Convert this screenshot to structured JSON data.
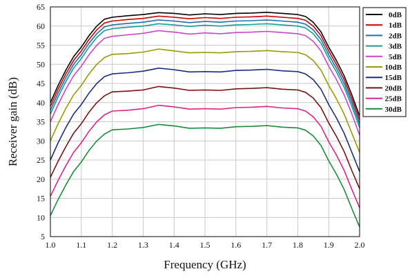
{
  "chart_data": {
    "type": "line",
    "xlabel": "Frequency (GHz)",
    "ylabel": "Receiver gain (dB)",
    "xlim": [
      1.0,
      2.0
    ],
    "ylim": [
      5,
      65
    ],
    "xticks": [
      "1.0",
      "1.1",
      "1.2",
      "1.3",
      "1.4",
      "1.5",
      "1.6",
      "1.7",
      "1.8",
      "1.9",
      "2.0"
    ],
    "yticks": [
      "5",
      "10",
      "15",
      "20",
      "25",
      "30",
      "35",
      "40",
      "45",
      "50",
      "55",
      "60",
      "65"
    ],
    "grid": true,
    "legend_position": "right",
    "x": [
      1.0,
      1.025,
      1.05,
      1.075,
      1.1,
      1.125,
      1.15,
      1.175,
      1.2,
      1.25,
      1.3,
      1.35,
      1.4,
      1.45,
      1.5,
      1.55,
      1.6,
      1.65,
      1.7,
      1.75,
      1.8,
      1.825,
      1.85,
      1.875,
      1.9,
      1.925,
      1.95,
      1.975,
      2.0
    ],
    "series": [
      {
        "name": "0dB",
        "color": "#000000",
        "values": [
          40.0,
          44.5,
          48.5,
          52.0,
          54.5,
          57.5,
          60.0,
          61.8,
          62.3,
          62.7,
          63.0,
          63.5,
          63.3,
          62.9,
          63.2,
          63.0,
          63.3,
          63.4,
          63.6,
          63.3,
          63.0,
          62.5,
          61.0,
          58.5,
          54.5,
          51.0,
          47.0,
          42.0,
          36.5
        ]
      },
      {
        "name": "1dB",
        "color": "#cc0000",
        "values": [
          39.0,
          43.5,
          47.5,
          51.0,
          53.5,
          56.5,
          59.0,
          60.8,
          61.3,
          61.7,
          62.0,
          62.6,
          62.3,
          61.9,
          62.2,
          62.0,
          62.3,
          62.4,
          62.6,
          62.3,
          62.0,
          61.5,
          60.0,
          57.5,
          53.5,
          50.0,
          46.0,
          41.0,
          35.5
        ]
      },
      {
        "name": "2dB",
        "color": "#1f6fae",
        "values": [
          38.0,
          42.5,
          46.5,
          50.0,
          52.5,
          55.5,
          58.0,
          59.8,
          60.3,
          60.7,
          61.0,
          61.6,
          61.3,
          60.9,
          61.2,
          61.0,
          61.3,
          61.4,
          61.6,
          61.3,
          61.0,
          60.5,
          59.0,
          56.5,
          52.5,
          49.0,
          45.0,
          40.0,
          34.5
        ]
      },
      {
        "name": "3dB",
        "color": "#1a9a9a",
        "values": [
          37.0,
          41.5,
          45.5,
          49.0,
          51.5,
          54.5,
          57.0,
          58.8,
          59.3,
          59.7,
          60.0,
          60.6,
          60.3,
          59.9,
          60.2,
          60.0,
          60.3,
          60.4,
          60.6,
          60.3,
          60.0,
          59.5,
          58.0,
          55.5,
          51.5,
          48.0,
          44.0,
          39.0,
          33.5
        ]
      },
      {
        "name": "5dB",
        "color": "#cc44cc",
        "values": [
          35.0,
          39.5,
          43.5,
          47.0,
          49.5,
          52.5,
          55.0,
          56.8,
          57.3,
          57.7,
          58.1,
          58.8,
          58.4,
          57.9,
          58.2,
          58.0,
          58.3,
          58.4,
          58.6,
          58.3,
          58.0,
          57.5,
          56.0,
          53.5,
          49.5,
          46.0,
          42.0,
          37.0,
          31.5
        ]
      },
      {
        "name": "10dB",
        "color": "#999900",
        "values": [
          30.0,
          34.5,
          38.5,
          42.0,
          44.5,
          47.5,
          50.0,
          51.8,
          52.6,
          52.8,
          53.2,
          54.0,
          53.5,
          53.0,
          53.1,
          53.0,
          53.3,
          53.4,
          53.6,
          53.3,
          53.1,
          52.5,
          51.0,
          48.5,
          44.5,
          41.0,
          37.0,
          32.0,
          27.0
        ]
      },
      {
        "name": "15dB",
        "color": "#1a2a80",
        "values": [
          25.0,
          29.5,
          33.5,
          37.0,
          39.5,
          42.5,
          45.0,
          46.8,
          47.5,
          47.8,
          48.2,
          49.0,
          48.6,
          48.0,
          48.1,
          48.0,
          48.4,
          48.5,
          48.7,
          48.3,
          48.1,
          47.5,
          46.0,
          43.5,
          39.5,
          36.0,
          32.0,
          27.0,
          22.0
        ]
      },
      {
        "name": "20dB",
        "color": "#7a1010",
        "values": [
          20.5,
          24.7,
          28.5,
          32.0,
          34.5,
          37.5,
          40.0,
          41.8,
          42.8,
          43.0,
          43.3,
          44.2,
          43.8,
          43.2,
          43.3,
          43.2,
          43.6,
          43.7,
          43.9,
          43.5,
          43.3,
          42.7,
          41.2,
          38.7,
          34.7,
          31.2,
          27.2,
          22.2,
          17.5
        ]
      },
      {
        "name": "25dB",
        "color": "#dd2288",
        "values": [
          15.5,
          19.7,
          23.5,
          27.0,
          29.5,
          32.5,
          35.0,
          36.8,
          37.8,
          38.0,
          38.4,
          39.3,
          38.9,
          38.3,
          38.4,
          38.3,
          38.7,
          38.8,
          39.0,
          38.6,
          38.4,
          37.8,
          36.3,
          33.8,
          29.8,
          26.3,
          22.3,
          17.3,
          12.5
        ]
      },
      {
        "name": "30dB",
        "color": "#1a8a3a",
        "values": [
          10.5,
          14.7,
          18.5,
          22.0,
          24.5,
          27.5,
          30.0,
          31.8,
          32.9,
          33.1,
          33.5,
          34.3,
          33.9,
          33.3,
          33.4,
          33.3,
          33.7,
          33.8,
          34.0,
          33.6,
          33.4,
          32.8,
          31.3,
          28.8,
          24.8,
          21.3,
          17.3,
          12.3,
          7.5
        ]
      }
    ]
  }
}
